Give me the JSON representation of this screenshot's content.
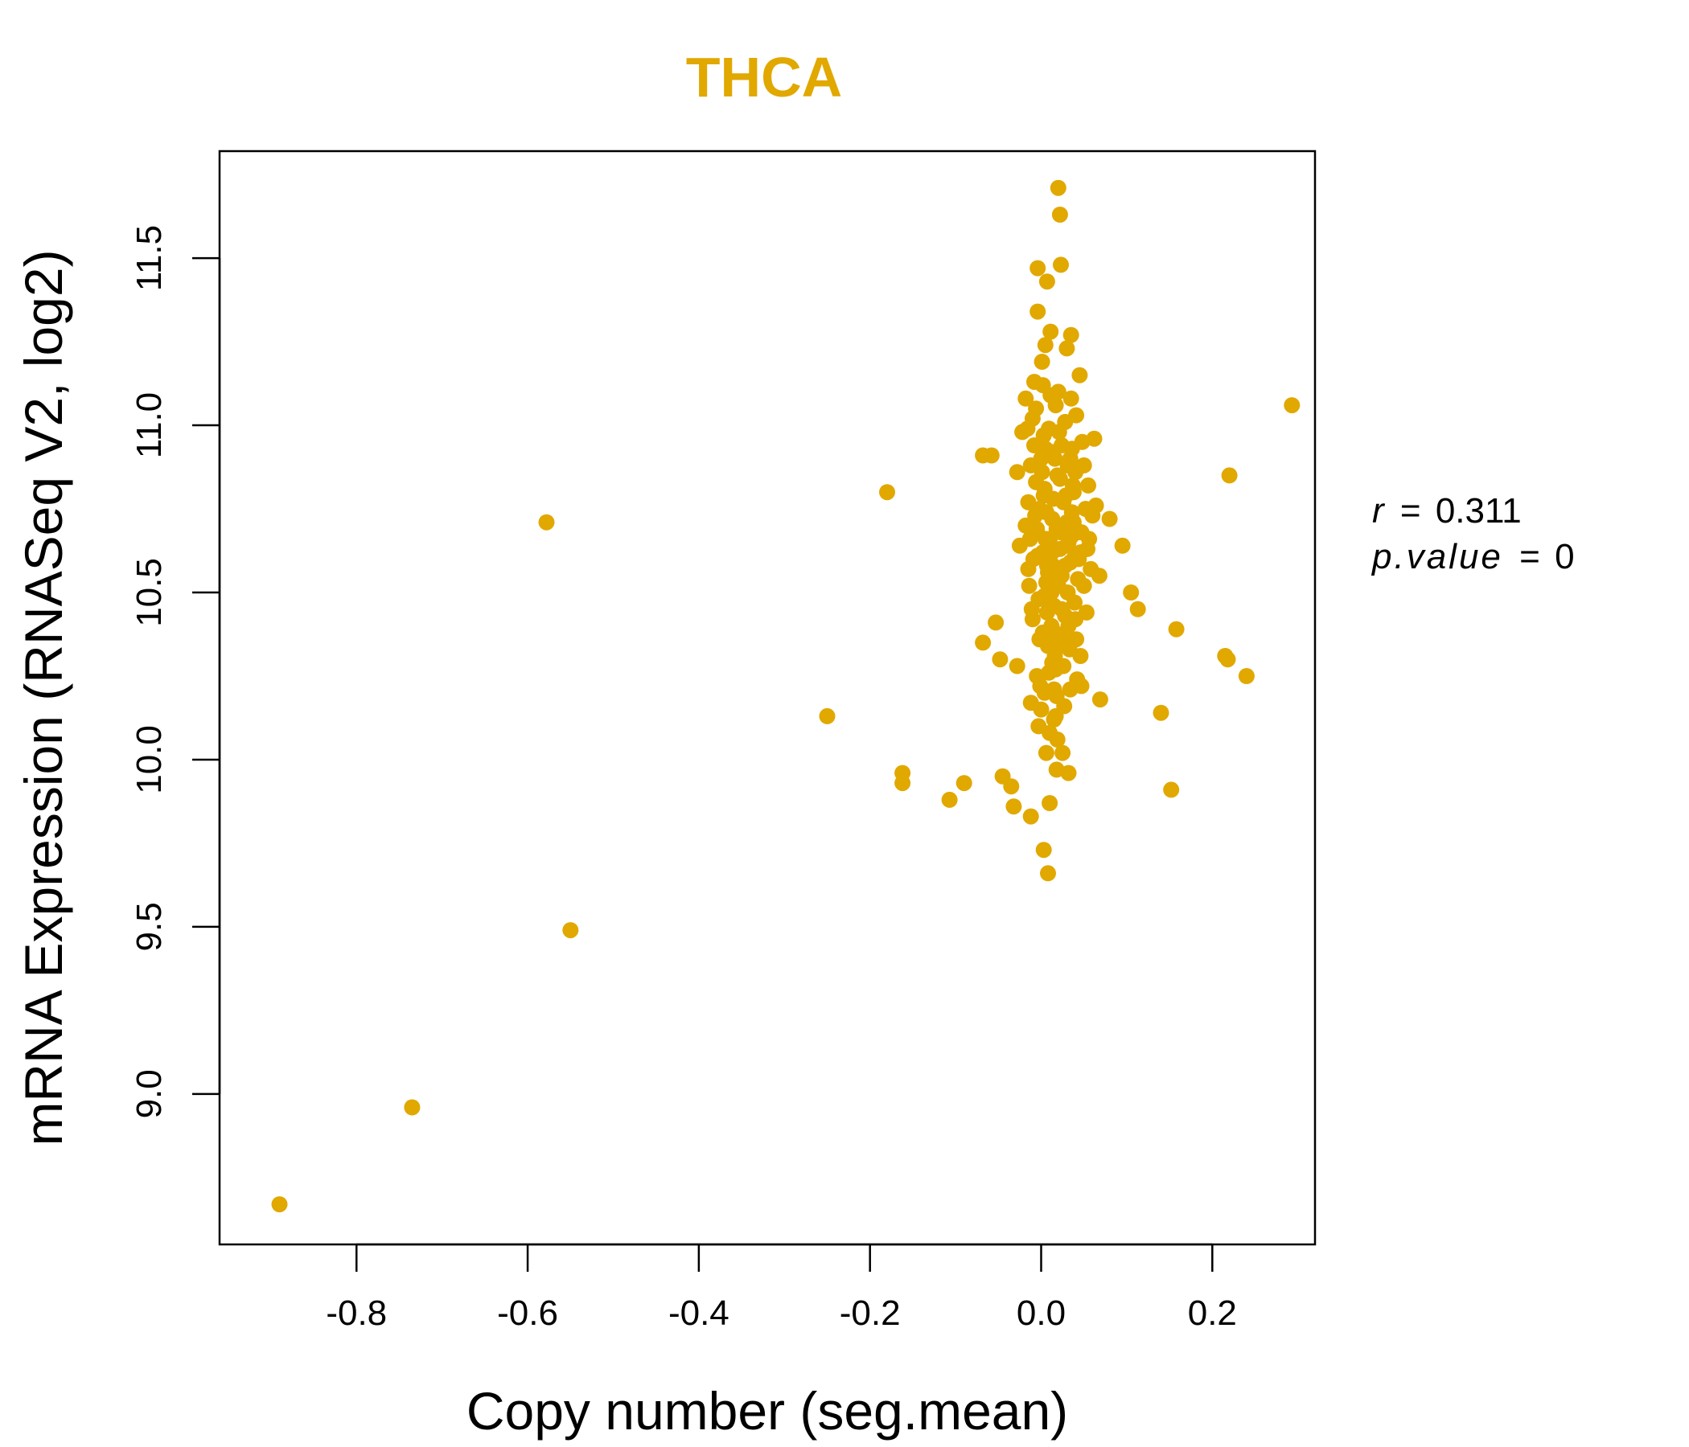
{
  "colors": {
    "point": "#E1A800",
    "title": "#E1A800",
    "axis": "#000000"
  },
  "chart_data": {
    "type": "scatter",
    "title": "THCA",
    "xlabel": "Copy number (seg.mean)",
    "ylabel": "mRNA Expression (RNASeq V2, log2)",
    "xlim": [
      -0.96,
      0.32
    ],
    "ylim": [
      8.55,
      11.82
    ],
    "xticks": [
      -0.8,
      -0.6,
      -0.4,
      -0.2,
      0.0,
      0.2
    ],
    "xtick_labels": [
      "-0.8",
      "-0.6",
      "-0.4",
      "-0.2",
      "0.0",
      "0.2"
    ],
    "yticks": [
      9.0,
      9.5,
      10.0,
      10.5,
      11.0,
      11.5
    ],
    "ytick_labels": [
      "9.0",
      "9.5",
      "10.0",
      "10.5",
      "11.0",
      "11.5"
    ],
    "grid": false,
    "stats": {
      "r_label": "r",
      "r_value": "0.311",
      "p_label": "p.value",
      "p_value": "0"
    },
    "points": [
      [
        -0.89,
        8.67
      ],
      [
        -0.735,
        8.96
      ],
      [
        -0.578,
        10.71
      ],
      [
        -0.55,
        9.49
      ],
      [
        -0.25,
        10.13
      ],
      [
        -0.18,
        10.8
      ],
      [
        -0.162,
        9.96
      ],
      [
        -0.162,
        9.93
      ],
      [
        -0.107,
        9.88
      ],
      [
        -0.09,
        9.93
      ],
      [
        -0.068,
        10.91
      ],
      [
        -0.058,
        10.91
      ],
      [
        -0.068,
        10.35
      ],
      [
        -0.053,
        10.41
      ],
      [
        -0.048,
        10.3
      ],
      [
        -0.045,
        9.95
      ],
      [
        -0.035,
        9.92
      ],
      [
        -0.032,
        9.86
      ],
      [
        -0.028,
        10.28
      ],
      [
        -0.028,
        10.86
      ],
      [
        -0.025,
        10.64
      ],
      [
        -0.022,
        10.98
      ],
      [
        -0.018,
        11.08
      ],
      [
        -0.015,
        10.57
      ],
      [
        -0.012,
        9.83
      ],
      [
        -0.012,
        10.17
      ],
      [
        -0.01,
        10.42
      ],
      [
        -0.008,
        11.13
      ],
      [
        -0.005,
        10.25
      ],
      [
        -0.004,
        11.34
      ],
      [
        -0.004,
        11.47
      ],
      [
        -0.003,
        10.1
      ],
      [
        -0.002,
        10.75
      ],
      [
        0.0,
        10.9
      ],
      [
        0.002,
        10.38
      ],
      [
        0.003,
        9.73
      ],
      [
        0.004,
        10.2
      ],
      [
        0.005,
        11.24
      ],
      [
        0.006,
        10.02
      ],
      [
        0.007,
        11.43
      ],
      [
        0.008,
        9.66
      ],
      [
        0.009,
        10.99
      ],
      [
        0.01,
        9.87
      ],
      [
        0.011,
        11.28
      ],
      [
        0.012,
        10.5
      ],
      [
        0.013,
        10.62
      ],
      [
        0.014,
        10.78
      ],
      [
        0.015,
        10.12
      ],
      [
        0.016,
        10.31
      ],
      [
        0.017,
        11.06
      ],
      [
        0.018,
        9.97
      ],
      [
        0.019,
        10.85
      ],
      [
        0.02,
        11.71
      ],
      [
        0.022,
        11.63
      ],
      [
        0.023,
        11.48
      ],
      [
        0.024,
        10.45
      ],
      [
        0.025,
        10.02
      ],
      [
        0.026,
        10.7
      ],
      [
        0.028,
        10.58
      ],
      [
        0.03,
        11.23
      ],
      [
        0.031,
        10.88
      ],
      [
        0.032,
        9.96
      ],
      [
        0.034,
        10.9
      ],
      [
        0.035,
        11.27
      ],
      [
        0.036,
        10.67
      ],
      [
        0.038,
        10.6
      ],
      [
        0.04,
        10.42
      ],
      [
        0.041,
        11.03
      ],
      [
        0.042,
        10.24
      ],
      [
        0.043,
        10.54
      ],
      [
        0.045,
        11.15
      ],
      [
        0.046,
        10.31
      ],
      [
        0.047,
        10.22
      ],
      [
        0.048,
        10.95
      ],
      [
        0.05,
        10.88
      ],
      [
        0.052,
        10.75
      ],
      [
        0.054,
        10.63
      ],
      [
        0.056,
        10.66
      ],
      [
        0.058,
        10.57
      ],
      [
        0.06,
        10.73
      ],
      [
        0.062,
        10.96
      ],
      [
        0.064,
        10.76
      ],
      [
        0.068,
        10.55
      ],
      [
        0.069,
        10.18
      ],
      [
        0.08,
        10.72
      ],
      [
        0.095,
        10.64
      ],
      [
        0.105,
        10.5
      ],
      [
        0.113,
        10.45
      ],
      [
        0.14,
        10.14
      ],
      [
        0.152,
        9.91
      ],
      [
        0.158,
        10.39
      ],
      [
        0.215,
        10.31
      ],
      [
        0.218,
        10.3
      ],
      [
        0.22,
        10.85
      ],
      [
        0.24,
        10.25
      ],
      [
        0.293,
        11.06
      ],
      [
        -0.01,
        11.02
      ],
      [
        -0.008,
        10.94
      ],
      [
        -0.006,
        10.83
      ],
      [
        -0.005,
        10.69
      ],
      [
        -0.004,
        10.61
      ],
      [
        -0.003,
        10.48
      ],
      [
        -0.002,
        10.36
      ],
      [
        -0.001,
        10.22
      ],
      [
        0.0,
        10.15
      ],
      [
        0.001,
        11.19
      ],
      [
        0.002,
        11.12
      ],
      [
        0.003,
        10.97
      ],
      [
        0.004,
        10.81
      ],
      [
        0.005,
        10.66
      ],
      [
        0.006,
        10.53
      ],
      [
        0.007,
        10.44
      ],
      [
        0.008,
        10.34
      ],
      [
        0.009,
        10.26
      ],
      [
        0.01,
        10.08
      ],
      [
        0.011,
        11.09
      ],
      [
        0.012,
        10.92
      ],
      [
        0.013,
        10.72
      ],
      [
        0.014,
        10.56
      ],
      [
        0.015,
        10.46
      ],
      [
        0.016,
        10.38
      ],
      [
        0.017,
        10.27
      ],
      [
        0.018,
        10.19
      ],
      [
        0.019,
        10.06
      ],
      [
        0.02,
        11.1
      ],
      [
        0.021,
        10.98
      ],
      [
        0.022,
        10.84
      ],
      [
        0.023,
        10.68
      ],
      [
        0.024,
        10.55
      ],
      [
        0.025,
        10.37
      ],
      [
        0.026,
        10.28
      ],
      [
        0.027,
        10.16
      ],
      [
        0.028,
        11.01
      ],
      [
        0.029,
        10.79
      ],
      [
        0.03,
        10.64
      ],
      [
        0.031,
        10.5
      ],
      [
        0.032,
        10.4
      ],
      [
        0.033,
        10.33
      ],
      [
        0.034,
        10.21
      ],
      [
        0.035,
        11.08
      ],
      [
        0.036,
        10.93
      ],
      [
        0.037,
        10.82
      ],
      [
        0.038,
        10.71
      ],
      [
        0.039,
        10.47
      ],
      [
        0.041,
        10.36
      ],
      [
        0.044,
        10.6
      ],
      [
        0.047,
        10.68
      ],
      [
        0.05,
        10.52
      ],
      [
        0.053,
        10.44
      ],
      [
        0.055,
        10.82
      ],
      [
        -0.015,
        10.77
      ],
      [
        -0.014,
        10.52
      ],
      [
        -0.013,
        10.66
      ],
      [
        -0.012,
        10.88
      ],
      [
        -0.011,
        10.45
      ],
      [
        -0.009,
        10.6
      ],
      [
        -0.007,
        10.73
      ],
      [
        -0.006,
        11.05
      ],
      [
        -0.016,
        10.99
      ],
      [
        -0.018,
        10.7
      ],
      [
        0.002,
        10.62
      ],
      [
        0.006,
        10.74
      ],
      [
        0.01,
        10.66
      ],
      [
        0.014,
        10.58
      ],
      [
        0.018,
        10.69
      ],
      [
        0.022,
        10.63
      ],
      [
        0.026,
        10.77
      ],
      [
        0.03,
        10.71
      ],
      [
        0.034,
        10.59
      ],
      [
        0.038,
        10.8
      ],
      [
        0.042,
        10.68
      ],
      [
        0.046,
        10.62
      ],
      [
        0.004,
        10.49
      ],
      [
        0.008,
        10.56
      ],
      [
        0.012,
        10.4
      ],
      [
        0.016,
        10.9
      ],
      [
        0.02,
        10.52
      ],
      [
        0.024,
        10.94
      ],
      [
        0.028,
        10.43
      ],
      [
        0.032,
        10.65
      ],
      [
        0.036,
        10.74
      ],
      [
        0.04,
        10.86
      ],
      [
        0.001,
        10.86
      ],
      [
        0.003,
        10.79
      ],
      [
        0.005,
        10.93
      ],
      [
        0.007,
        10.58
      ],
      [
        0.009,
        10.47
      ],
      [
        0.011,
        10.37
      ],
      [
        0.013,
        10.29
      ],
      [
        0.015,
        10.21
      ],
      [
        0.017,
        10.13
      ],
      [
        0.019,
        10.34
      ]
    ]
  }
}
